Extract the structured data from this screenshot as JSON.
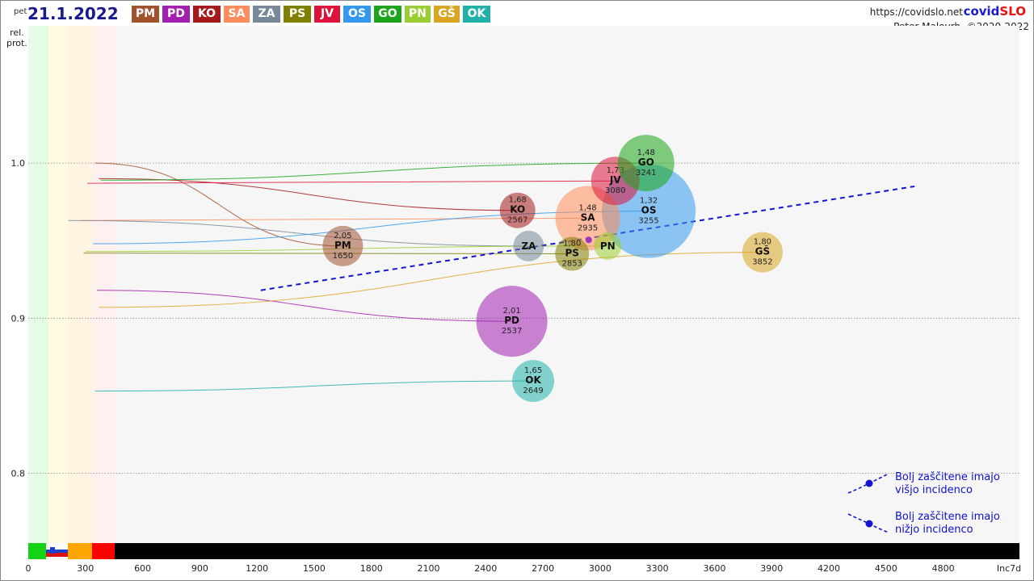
{
  "header": {
    "day": "pet",
    "date": "21.1.2022",
    "url": "https://covidslo.net",
    "brand_part1": "covid",
    "brand_part2": "SLO",
    "author": "Peter Malovrh, ©2020-2022"
  },
  "regions": [
    {
      "code": "PM",
      "color": "#a0522d"
    },
    {
      "code": "PD",
      "color": "#a31fb0"
    },
    {
      "code": "KO",
      "color": "#a61a1a"
    },
    {
      "code": "SA",
      "color": "#ff8c5a"
    },
    {
      "code": "ZA",
      "color": "#778899"
    },
    {
      "code": "PS",
      "color": "#808000"
    },
    {
      "code": "JV",
      "color": "#dc143c"
    },
    {
      "code": "OS",
      "color": "#3399ee"
    },
    {
      "code": "GO",
      "color": "#1aa51a"
    },
    {
      "code": "PN",
      "color": "#9acd32"
    },
    {
      "code": "GŠ",
      "color": "#daa520"
    },
    {
      "code": "OK",
      "color": "#20b2aa"
    }
  ],
  "legend_notes": {
    "upper": [
      "Bolj  zaščitene imajo",
      "višjo incidenco"
    ],
    "lower": [
      "Bolj  zaščitene imajo",
      "nižjo incidenco"
    ]
  },
  "chart_data": {
    "type": "scatter",
    "ylabel": "rel.\nprot.",
    "xlabel": "Inc7d",
    "xlim": [
      0,
      5200
    ],
    "ylim": [
      0.755,
      1.0885
    ],
    "xticks": [
      0,
      300,
      600,
      900,
      1200,
      1500,
      1800,
      2100,
      2400,
      2700,
      3000,
      3300,
      3600,
      3900,
      4200,
      4500,
      4800
    ],
    "yticks": [
      0.8,
      0.9,
      1.0
    ],
    "ytick_labels": [
      "0.8",
      "0.9",
      "1.0"
    ],
    "grid": true,
    "bubbles": [
      {
        "code": "PM",
        "x": 1650,
        "y": 0.9465,
        "value": "2,05",
        "label": "1650"
      },
      {
        "code": "PD",
        "x": 2537,
        "y": 0.898,
        "value": "2,01",
        "label": "2537"
      },
      {
        "code": "KO",
        "x": 2567,
        "y": 0.9695,
        "value": "1,68",
        "label": "2567"
      },
      {
        "code": "SA",
        "x": 2935,
        "y": 0.9645,
        "value": "1,48",
        "label": "2935"
      },
      {
        "code": "ZA",
        "x": 2625,
        "y": 0.9465,
        "value": "",
        "label": ""
      },
      {
        "code": "PS",
        "x": 2853,
        "y": 0.9415,
        "value": "1,80",
        "label": "2853"
      },
      {
        "code": "JV",
        "x": 3080,
        "y": 0.9885,
        "value": "1,73",
        "label": "3080"
      },
      {
        "code": "OS",
        "x": 3255,
        "y": 0.969,
        "value": "1,32",
        "label": "3255"
      },
      {
        "code": "GO",
        "x": 3241,
        "y": 1.0,
        "value": "1,48",
        "label": "3241"
      },
      {
        "code": "PN",
        "x": 3040,
        "y": 0.9465,
        "value": "",
        "label": ""
      },
      {
        "code": "GŠ",
        "x": 3852,
        "y": 0.9425,
        "value": "1,80",
        "label": "3852"
      },
      {
        "code": "OK",
        "x": 2649,
        "y": 0.8595,
        "value": "1,65",
        "label": "2649"
      }
    ],
    "trend_line": {
      "x": [
        1220,
        4650
      ],
      "y": [
        0.918,
        0.985
      ]
    },
    "mean_point": {
      "x": 2940,
      "y": 0.9505
    }
  }
}
